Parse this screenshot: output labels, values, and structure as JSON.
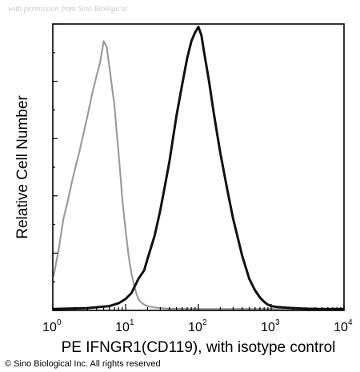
{
  "watermark": "with permission from Sino Biological",
  "copyright": "© Sino Biological Inc. All rights reserved",
  "chart_data": {
    "type": "line",
    "xlabel": "PE IFNGR1(CD119), with isotype control",
    "ylabel": "Relative Cell Number",
    "xscale": "log",
    "xlim": [
      1,
      10000
    ],
    "ylim": [
      0,
      100
    ],
    "x_ticks": [
      {
        "base": "10",
        "exp": "0",
        "value": 1
      },
      {
        "base": "10",
        "exp": "1",
        "value": 10
      },
      {
        "base": "10",
        "exp": "2",
        "value": 100
      },
      {
        "base": "10",
        "exp": "3",
        "value": 1000
      },
      {
        "base": "10",
        "exp": "4",
        "value": 10000
      }
    ],
    "grid": false,
    "series": [
      {
        "role": "isotype-control",
        "color": "#9a9a9a",
        "x": [
          1.0,
          1.2,
          1.4,
          1.6,
          1.8,
          2.0,
          2.3,
          2.6,
          3.0,
          3.5,
          4.0,
          4.5,
          5.0,
          5.5,
          6.0,
          6.5,
          7.0,
          7.5,
          8.0,
          8.5,
          9.0,
          10.0,
          11.0,
          12.0,
          13.0,
          14.0,
          15.0,
          16.0,
          18.0,
          20.0,
          25.0,
          30.0,
          40.0,
          60.0,
          100.0,
          200.0,
          500.0,
          1000.0,
          3000.0,
          10000.0
        ],
        "y": [
          12.0,
          21.0,
          32.0,
          38.0,
          44.0,
          49.0,
          55.0,
          61.0,
          68.0,
          76.0,
          82.0,
          87.0,
          94.0,
          92.0,
          85.0,
          78.0,
          72.0,
          63.0,
          55.0,
          47.0,
          39.0,
          28.0,
          19.0,
          13.0,
          9.0,
          6.0,
          4.0,
          3.0,
          2.0,
          1.5,
          1.0,
          0.8,
          0.6,
          0.5,
          0.5,
          0.5,
          0.5,
          0.5,
          0.5,
          0.5
        ]
      },
      {
        "role": "ifngr1-stained",
        "color": "#111111",
        "x": [
          1.0,
          3.0,
          6.0,
          8.0,
          10.0,
          12.0,
          15.0,
          18.0,
          20.0,
          25.0,
          30.0,
          35.0,
          40.0,
          50.0,
          60.0,
          70.0,
          80.0,
          90.0,
          100.0,
          110.0,
          120.0,
          140.0,
          160.0,
          180.0,
          200.0,
          250.0,
          300.0,
          400.0,
          500.0,
          600.0,
          700.0,
          800.0,
          900.0,
          1000.0,
          1200.0,
          1500.0,
          2000.0,
          3000.0,
          5000.0,
          10000.0
        ],
        "y": [
          0.5,
          0.8,
          1.5,
          2.5,
          4.0,
          6.0,
          11.0,
          14.0,
          18.0,
          26.0,
          35.0,
          44.0,
          52.0,
          68.0,
          79.0,
          88.0,
          94.0,
          97.0,
          99.0,
          96.0,
          90.0,
          80.0,
          70.0,
          62.0,
          55.0,
          42.0,
          32.0,
          19.0,
          11.0,
          7.0,
          4.5,
          3.0,
          2.0,
          1.5,
          1.2,
          1.0,
          0.8,
          0.6,
          0.5,
          0.5
        ]
      }
    ]
  }
}
